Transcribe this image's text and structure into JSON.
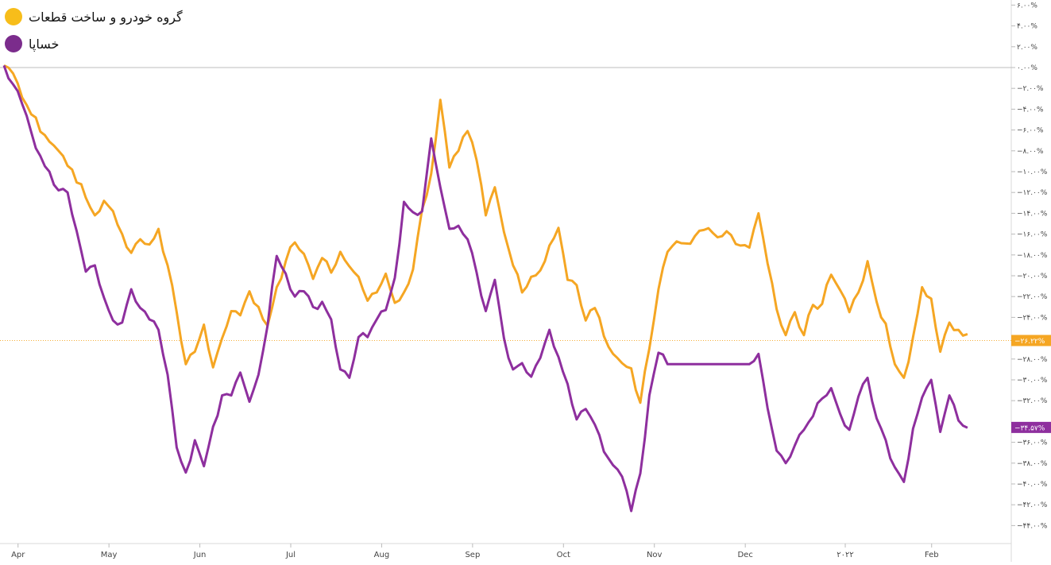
{
  "colors": {
    "series_1": "#f5a623",
    "series_2": "#8e2f9e",
    "legend_1": "#f7bd1a",
    "legend_2": "#7b2c8c"
  },
  "chart_data": {
    "type": "line",
    "title": "",
    "xlabel": "",
    "ylabel": "",
    "grid": false,
    "legend_position": "top-left",
    "ylim": [
      -46,
      8
    ],
    "y_ticks": [
      {
        "value": 6,
        "label": "۶.۰۰%"
      },
      {
        "value": 4,
        "label": "۴.۰۰%"
      },
      {
        "value": 2,
        "label": "۲.۰۰%"
      },
      {
        "value": 0,
        "label": "۰.۰۰%"
      },
      {
        "value": -2,
        "label": "−۲.۰۰%"
      },
      {
        "value": -4,
        "label": "−۴.۰۰%"
      },
      {
        "value": -6,
        "label": "−۶.۰۰%"
      },
      {
        "value": -8,
        "label": "−۸.۰۰%"
      },
      {
        "value": -10,
        "label": "−۱۰.۰۰%"
      },
      {
        "value": -12,
        "label": "−۱۲.۰۰%"
      },
      {
        "value": -14,
        "label": "−۱۴.۰۰%"
      },
      {
        "value": -16,
        "label": "−۱۶.۰۰%"
      },
      {
        "value": -18,
        "label": "−۱۸.۰۰%"
      },
      {
        "value": -20,
        "label": "−۲۰.۰۰%"
      },
      {
        "value": -22,
        "label": "−۲۲.۰۰%"
      },
      {
        "value": -24,
        "label": "−۲۴.۰۰%"
      },
      {
        "value": -28,
        "label": "−۲۸.۰۰%"
      },
      {
        "value": -30,
        "label": "−۳۰.۰۰%"
      },
      {
        "value": -32,
        "label": "−۳۲.۰۰%"
      },
      {
        "value": -36,
        "label": "−۳۶.۰۰%"
      },
      {
        "value": -38,
        "label": "−۳۸.۰۰%"
      },
      {
        "value": -40,
        "label": "−۴۰.۰۰%"
      },
      {
        "value": -42,
        "label": "−۴۲.۰۰%"
      },
      {
        "value": -44,
        "label": "−۴۴.۰۰%"
      }
    ],
    "x_tick_labels": [
      "Apr",
      "May",
      "Jun",
      "Jul",
      "Aug",
      "Sep",
      "Oct",
      "Nov",
      "Dec",
      "۲۰۲۲",
      "Feb"
    ],
    "x_tick_positions": [
      1,
      21,
      41,
      61,
      81,
      101,
      121,
      141,
      161,
      183,
      202
    ],
    "x_count": 220,
    "series": [
      {
        "name": "گروه خودرو و ساخت قطعات",
        "color_key": "series_1",
        "last_label": "−۲۶.۲۲%",
        "last_value": -26.22,
        "anchors": [
          [
            0,
            0.2
          ],
          [
            3,
            -1.5
          ],
          [
            6,
            -4.5
          ],
          [
            9,
            -6.5
          ],
          [
            12,
            -8
          ],
          [
            15,
            -9.8
          ],
          [
            18,
            -12.5
          ],
          [
            20,
            -14.2
          ],
          [
            22,
            -12.8
          ],
          [
            24,
            -13.8
          ],
          [
            26,
            -16
          ],
          [
            28,
            -17.8
          ],
          [
            30,
            -16.5
          ],
          [
            32,
            -17
          ],
          [
            34,
            -15.5
          ],
          [
            36,
            -19
          ],
          [
            38,
            -23.5
          ],
          [
            40,
            -28.5
          ],
          [
            42,
            -27.3
          ],
          [
            44,
            -24.7
          ],
          [
            46,
            -28.8
          ],
          [
            48,
            -26
          ],
          [
            50,
            -23.4
          ],
          [
            52,
            -23.8
          ],
          [
            54,
            -21.5
          ],
          [
            56,
            -23
          ],
          [
            58,
            -24.8
          ],
          [
            60,
            -21.1
          ],
          [
            62,
            -18.6
          ],
          [
            64,
            -16.8
          ],
          [
            66,
            -17.9
          ],
          [
            68,
            -20.3
          ],
          [
            70,
            -18.3
          ],
          [
            72,
            -19.7
          ],
          [
            74,
            -17.7
          ],
          [
            76,
            -19.1
          ],
          [
            78,
            -20.1
          ],
          [
            80,
            -22.4
          ],
          [
            82,
            -21.6
          ],
          [
            84,
            -19.8
          ],
          [
            86,
            -22.6
          ],
          [
            88,
            -21.6
          ],
          [
            90,
            -19.4
          ],
          [
            92,
            -13.6
          ],
          [
            94,
            -10.2
          ],
          [
            96,
            -3.1
          ],
          [
            98,
            -9.6
          ],
          [
            100,
            -8
          ],
          [
            102,
            -6.1
          ],
          [
            104,
            -8.9
          ],
          [
            106,
            -14.2
          ],
          [
            108,
            -11.5
          ],
          [
            110,
            -15.8
          ],
          [
            112,
            -19
          ],
          [
            114,
            -21.6
          ],
          [
            116,
            -20.1
          ],
          [
            118,
            -19.5
          ],
          [
            120,
            -17.1
          ],
          [
            122,
            -15.4
          ],
          [
            124,
            -20.4
          ],
          [
            126,
            -20.9
          ],
          [
            128,
            -24.3
          ],
          [
            130,
            -23.1
          ],
          [
            132,
            -25.8
          ],
          [
            134,
            -27.5
          ],
          [
            136,
            -28.4
          ],
          [
            138,
            -28.9
          ],
          [
            140,
            -32.2
          ],
          [
            142,
            -27
          ],
          [
            144,
            -21.3
          ],
          [
            146,
            -17.7
          ],
          [
            148,
            -16.7
          ],
          [
            150,
            -16.9
          ],
          [
            152,
            -16.2
          ],
          [
            154,
            -15.6
          ],
          [
            156,
            -15.9
          ],
          [
            158,
            -16.2
          ],
          [
            160,
            -16.1
          ],
          [
            162,
            -17.1
          ],
          [
            164,
            -17.3
          ],
          [
            166,
            -14
          ],
          [
            168,
            -18.8
          ],
          [
            170,
            -23.2
          ],
          [
            172,
            -25.7
          ],
          [
            174,
            -23.5
          ],
          [
            176,
            -25.7
          ],
          [
            178,
            -22.8
          ],
          [
            180,
            -22.7
          ],
          [
            182,
            -19.9
          ],
          [
            184,
            -21.4
          ],
          [
            186,
            -23.5
          ],
          [
            188,
            -21.6
          ],
          [
            190,
            -18.6
          ],
          [
            192,
            -22.5
          ],
          [
            194,
            -24.6
          ],
          [
            196,
            -28.5
          ],
          [
            198,
            -29.8
          ],
          [
            200,
            -25.9
          ],
          [
            202,
            -21.1
          ],
          [
            204,
            -22.2
          ],
          [
            206,
            -27.3
          ],
          [
            208,
            -24.5
          ],
          [
            210,
            -25.2
          ],
          [
            212,
            -25.6
          ]
        ]
      },
      {
        "name": "خساپا",
        "color_key": "series_2",
        "last_label": "−۳۴.۵۷%",
        "last_value": -34.57,
        "anchors": [
          [
            0,
            0.2
          ],
          [
            2,
            -1.6
          ],
          [
            4,
            -3.5
          ],
          [
            6,
            -6.2
          ],
          [
            8,
            -8.5
          ],
          [
            10,
            -10
          ],
          [
            12,
            -11.8
          ],
          [
            14,
            -12
          ],
          [
            16,
            -15.7
          ],
          [
            18,
            -19.6
          ],
          [
            20,
            -19
          ],
          [
            22,
            -22.1
          ],
          [
            24,
            -24.3
          ],
          [
            26,
            -24.5
          ],
          [
            28,
            -21.3
          ],
          [
            30,
            -23.1
          ],
          [
            32,
            -24.2
          ],
          [
            34,
            -25.2
          ],
          [
            36,
            -29.5
          ],
          [
            38,
            -36.5
          ],
          [
            40,
            -38.9
          ],
          [
            42,
            -35.8
          ],
          [
            44,
            -38.3
          ],
          [
            46,
            -34.5
          ],
          [
            48,
            -31.5
          ],
          [
            50,
            -31.5
          ],
          [
            52,
            -29.3
          ],
          [
            54,
            -32.1
          ],
          [
            56,
            -29.5
          ],
          [
            58,
            -24.8
          ],
          [
            60,
            -18.1
          ],
          [
            62,
            -19.8
          ],
          [
            64,
            -22
          ],
          [
            66,
            -21.5
          ],
          [
            68,
            -23
          ],
          [
            70,
            -22.5
          ],
          [
            72,
            -24.2
          ],
          [
            74,
            -29
          ],
          [
            76,
            -29.8
          ],
          [
            78,
            -25.9
          ],
          [
            80,
            -25.9
          ],
          [
            82,
            -24.2
          ],
          [
            84,
            -23.3
          ],
          [
            86,
            -20.2
          ],
          [
            88,
            -12.9
          ],
          [
            90,
            -13.9
          ],
          [
            92,
            -13.8
          ],
          [
            94,
            -6.8
          ],
          [
            96,
            -11.5
          ],
          [
            98,
            -15.5
          ],
          [
            100,
            -15.2
          ],
          [
            102,
            -16.5
          ],
          [
            104,
            -19.7
          ],
          [
            106,
            -23.4
          ],
          [
            108,
            -20.4
          ],
          [
            110,
            -26
          ],
          [
            112,
            -29
          ],
          [
            114,
            -28.4
          ],
          [
            116,
            -29.7
          ],
          [
            118,
            -27.9
          ],
          [
            120,
            -25.2
          ],
          [
            122,
            -27.8
          ],
          [
            124,
            -30.4
          ],
          [
            126,
            -33.8
          ],
          [
            128,
            -32.8
          ],
          [
            130,
            -34.3
          ],
          [
            132,
            -36.9
          ],
          [
            134,
            -38.2
          ],
          [
            136,
            -39.3
          ],
          [
            138,
            -42.6
          ],
          [
            140,
            -39
          ],
          [
            142,
            -31.5
          ],
          [
            144,
            -27.4
          ],
          [
            146,
            -28.5
          ],
          [
            164,
            -28.5
          ],
          [
            166,
            -27.5
          ],
          [
            168,
            -32.7
          ],
          [
            170,
            -36.8
          ],
          [
            172,
            -38
          ],
          [
            174,
            -36.3
          ],
          [
            176,
            -34.8
          ],
          [
            178,
            -33.5
          ],
          [
            180,
            -31.8
          ],
          [
            182,
            -30.8
          ],
          [
            184,
            -33.3
          ],
          [
            186,
            -34.8
          ],
          [
            188,
            -31.6
          ],
          [
            190,
            -29.8
          ],
          [
            192,
            -33.7
          ],
          [
            194,
            -35.8
          ],
          [
            196,
            -38.4
          ],
          [
            198,
            -39.8
          ],
          [
            200,
            -34.7
          ],
          [
            202,
            -31.7
          ],
          [
            204,
            -30
          ],
          [
            206,
            -35
          ],
          [
            208,
            -31.5
          ],
          [
            210,
            -33.9
          ],
          [
            212,
            -34.6
          ]
        ]
      }
    ]
  }
}
